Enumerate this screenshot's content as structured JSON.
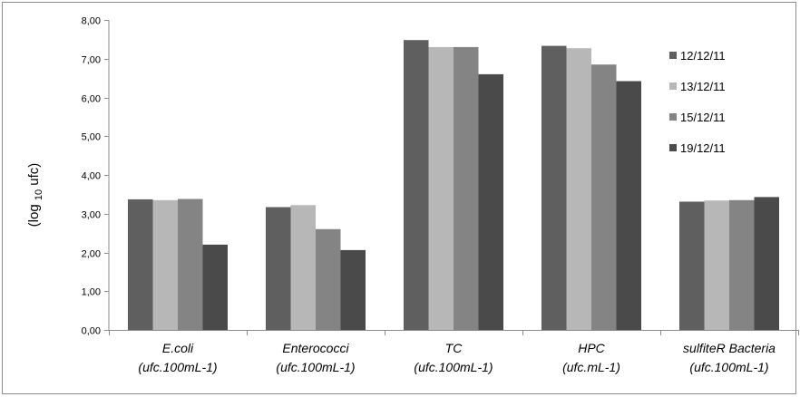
{
  "chart_data": {
    "type": "bar",
    "ylabel": {
      "prefix": "(log",
      "subscript": "10",
      "suffix": " ufc)"
    },
    "ylim": [
      0,
      8
    ],
    "yticks": [
      "0,00",
      "1,00",
      "2,00",
      "3,00",
      "4,00",
      "5,00",
      "6,00",
      "7,00",
      "8,00"
    ],
    "grid": false,
    "legend_position": "right",
    "categories": [
      {
        "name": "E.coli",
        "unit": "(ufc.100mL-1)"
      },
      {
        "name": "Enterococci",
        "unit": "(ufc.100mL-1)"
      },
      {
        "name": "TC",
        "unit": "(ufc.100mL-1)"
      },
      {
        "name": "HPC",
        "unit": "(ufc.mL-1)"
      },
      {
        "name": "sulfiteR Bacteria",
        "unit": "(ufc.100mL-1)"
      }
    ],
    "series": [
      {
        "name": "12/12/11",
        "color": "#5f5f5f",
        "values": [
          3.37,
          3.17,
          7.48,
          7.33,
          3.31
        ]
      },
      {
        "name": "13/12/11",
        "color": "#b7b7b7",
        "values": [
          3.35,
          3.22,
          7.3,
          7.27,
          3.34
        ]
      },
      {
        "name": "15/12/11",
        "color": "#848484",
        "values": [
          3.38,
          2.6,
          7.3,
          6.85,
          3.35
        ]
      },
      {
        "name": "19/12/11",
        "color": "#4a4a4a",
        "values": [
          2.2,
          2.06,
          6.6,
          6.42,
          3.43
        ]
      }
    ]
  }
}
